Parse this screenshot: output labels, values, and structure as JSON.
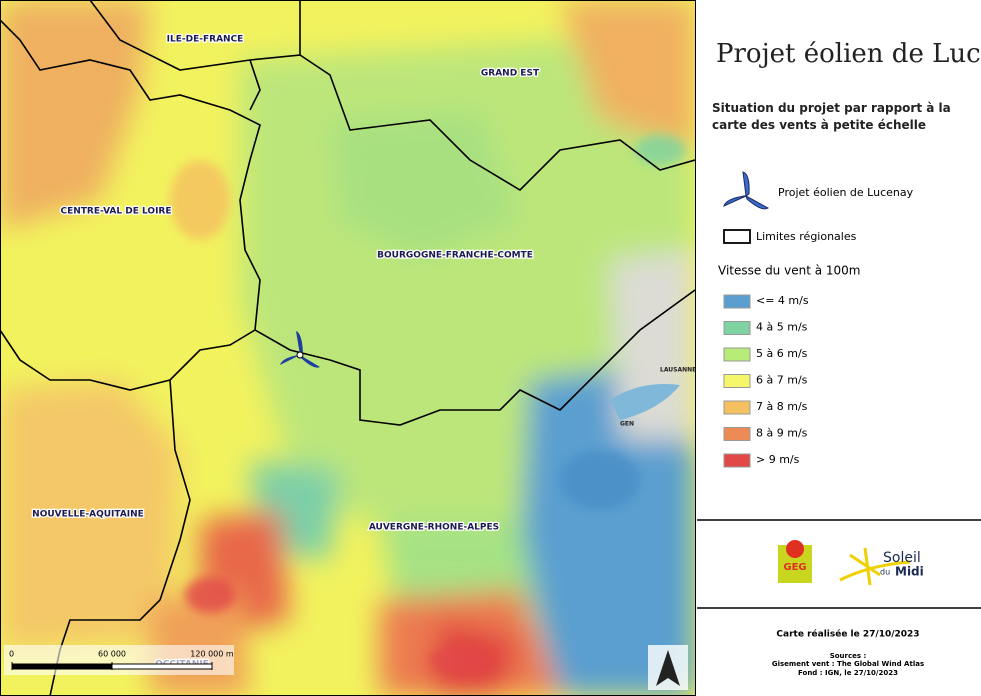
{
  "map": {
    "regions": [
      "ILE-DE-FRANCE",
      "GRAND EST",
      "CENTRE-VAL DE LOIRE",
      "BOURGOGNE-FRANCHE-COMTE",
      "NOUVELLE-AQUITAINE",
      "AUVERGNE-RHONE-ALPES",
      "OCCITANIE"
    ],
    "cities": [
      "LAUSANNE",
      "GEN"
    ],
    "scale_ticks": [
      0,
      {
        "value": 60000,
        "label": "60 000"
      },
      {
        "value": 120000,
        "label": "120 000 m"
      }
    ]
  },
  "panel": {
    "title": "Projet éolien de Lucenay",
    "subtitle": "Situation du projet par rapport à la carte des vents à petite échelle",
    "legend_project": "Projet éolien de Lucenay",
    "legend_limits": "Limites régionales",
    "wind_title": "Vitesse du vent à 100m",
    "classes": [
      {
        "label": "<= 4 m/s",
        "color": "#5b9fd0"
      },
      {
        "label": "4 à 5 m/s",
        "color": "#7fd3a0"
      },
      {
        "label": "5 à 6 m/s",
        "color": "#b8ec78"
      },
      {
        "label": "6 à 7 m/s",
        "color": "#f6f66a"
      },
      {
        "label": "7 à 8 m/s",
        "color": "#f5c060"
      },
      {
        "label": "8 à 9 m/s",
        "color": "#ee8a55"
      },
      {
        "label": "> 9 m/s",
        "color": "#e24848"
      }
    ],
    "logo_geg": "GEG",
    "logo_soleil": [
      "Soleil",
      "du",
      "Midi"
    ],
    "date": "Carte réalisée le 27/10/2023",
    "sources": [
      "Sources :",
      "Gisement vent : The Global Wind Atlas",
      "Fond : IGN, le 27/10/2023"
    ]
  }
}
